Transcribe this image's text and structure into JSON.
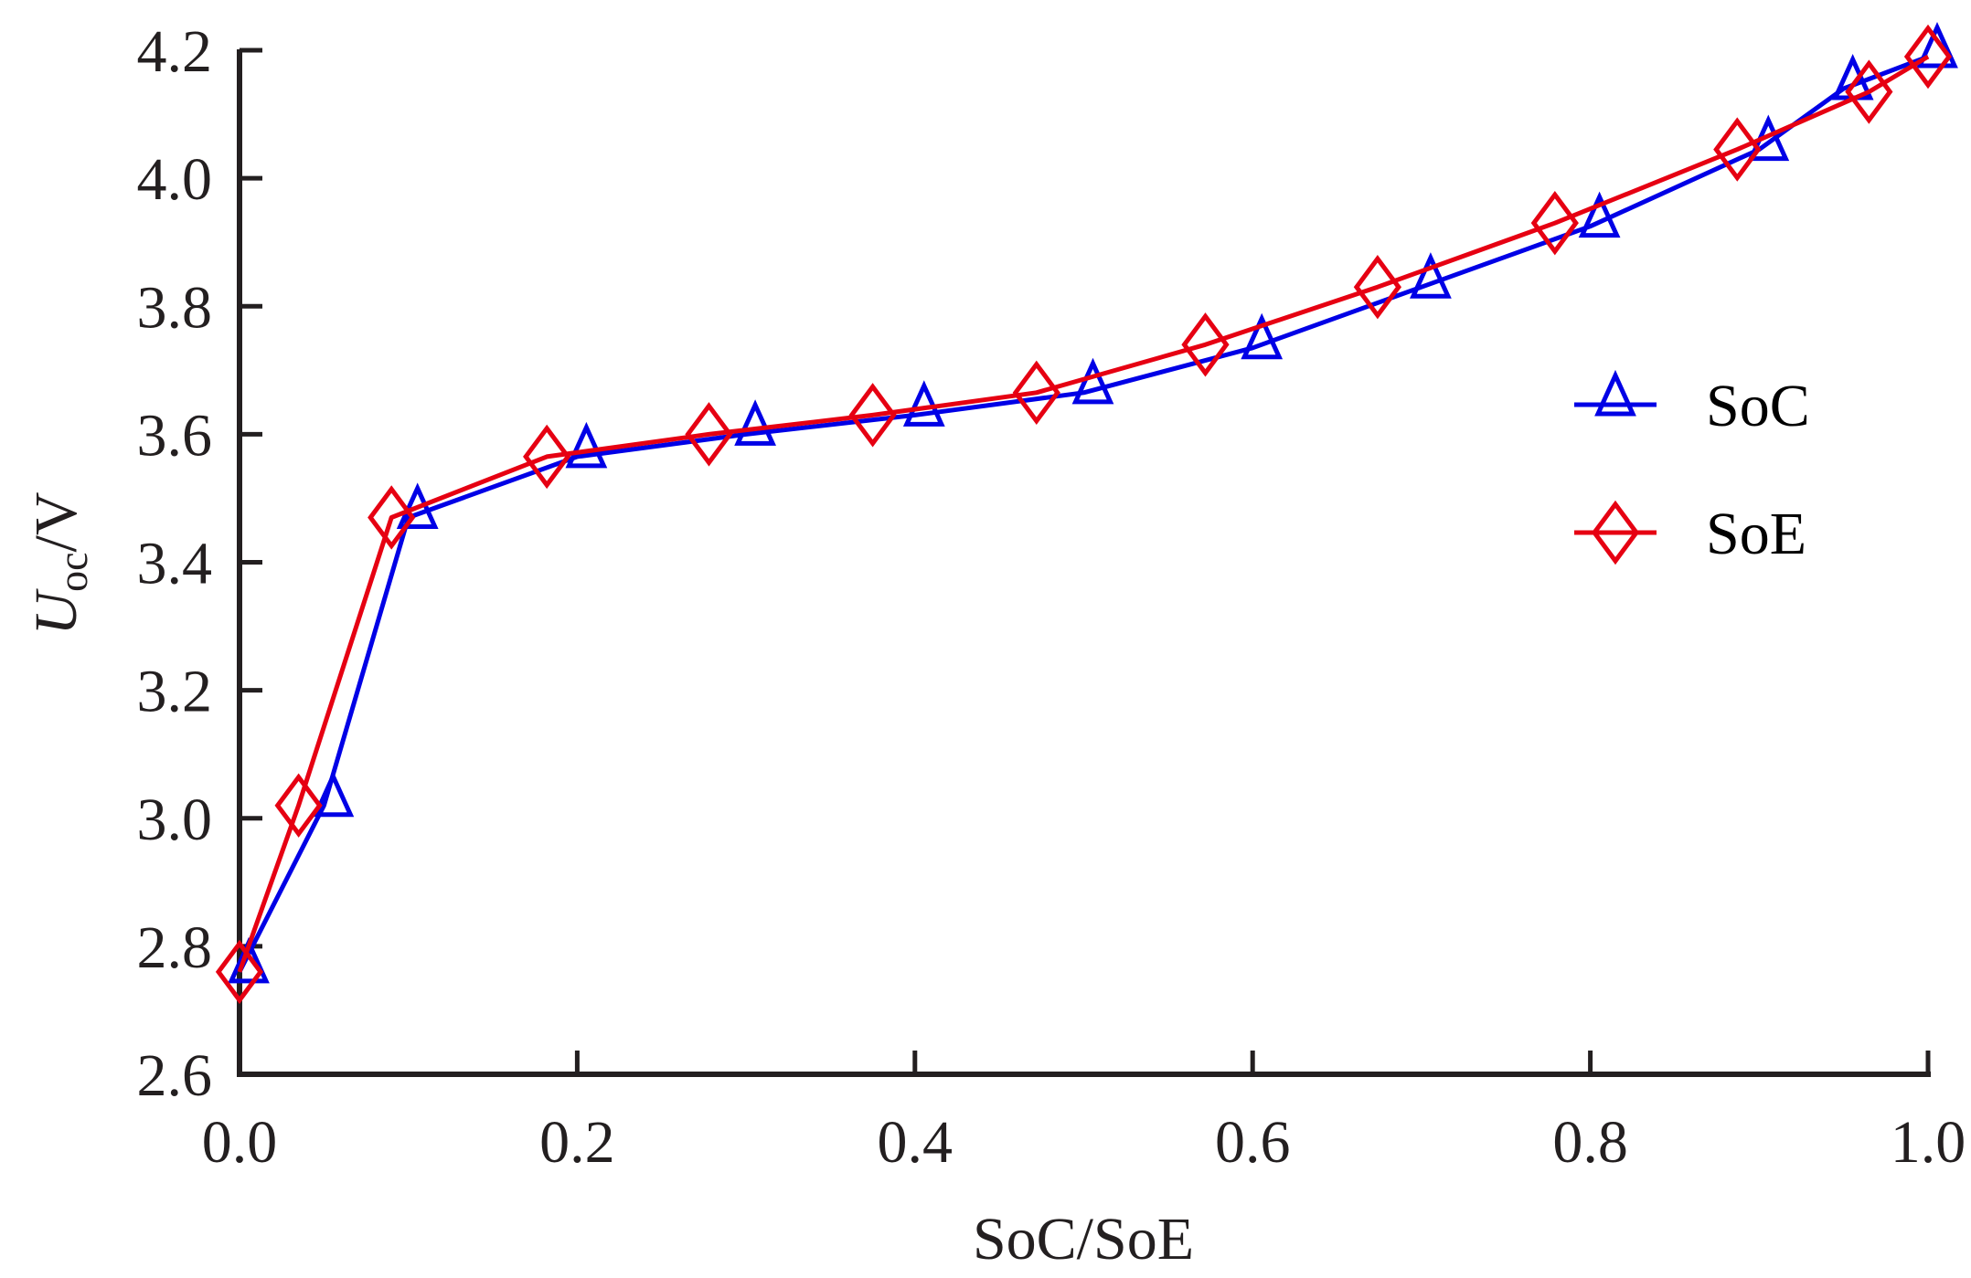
{
  "chart_data": {
    "type": "line",
    "title": "",
    "xlabel": "SoC/SoE",
    "ylabel": {
      "main": "U",
      "subscript": "oc",
      "suffix": "/V"
    },
    "xlim": [
      0.0,
      1.0
    ],
    "ylim": [
      2.6,
      4.2
    ],
    "xticks": [
      0.0,
      0.2,
      0.4,
      0.6,
      0.8,
      1.0
    ],
    "xtick_labels": [
      "0.0",
      "0.2",
      "0.4",
      "0.6",
      "0.8",
      "1.0"
    ],
    "yticks": [
      2.6,
      2.8,
      3.0,
      3.2,
      3.4,
      3.6,
      3.8,
      4.0,
      4.2
    ],
    "ytick_labels": [
      "2.6",
      "2.8",
      "3.0",
      "3.2",
      "3.4",
      "3.6",
      "3.8",
      "4.0",
      "4.2"
    ],
    "grid": false,
    "legend_position": "center-right",
    "series": [
      {
        "name": "SoC",
        "color": "#0000e6",
        "marker": "triangle",
        "x": [
          0.0,
          0.05,
          0.1,
          0.2,
          0.3,
          0.4,
          0.5,
          0.6,
          0.7,
          0.8,
          0.9,
          0.95,
          1.0
        ],
        "y": [
          2.76,
          3.02,
          3.47,
          3.565,
          3.6,
          3.63,
          3.665,
          3.735,
          3.83,
          3.925,
          4.045,
          4.14,
          4.19
        ]
      },
      {
        "name": "SoE",
        "color": "#e60012",
        "marker": "diamond",
        "x": [
          0.0,
          0.035,
          0.09,
          0.182,
          0.278,
          0.375,
          0.472,
          0.572,
          0.674,
          0.779,
          0.887,
          0.965,
          1.0
        ],
        "y": [
          2.76,
          3.02,
          3.47,
          3.565,
          3.6,
          3.63,
          3.665,
          3.74,
          3.83,
          3.93,
          4.045,
          4.135,
          4.19
        ]
      }
    ]
  }
}
